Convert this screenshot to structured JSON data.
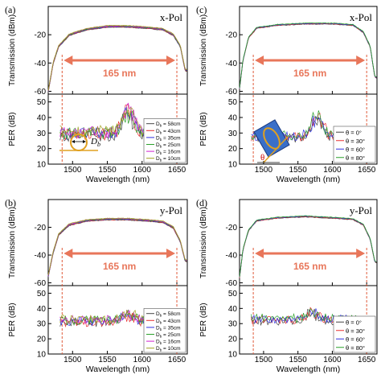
{
  "colors": {
    "arrow": "#e8765a",
    "dashed": "#e05a3a",
    "series": [
      "#444444",
      "#e83030",
      "#3030e0",
      "#2aa02a",
      "#d020d0",
      "#a0a020"
    ],
    "frame": "#000000"
  },
  "chart_data": [
    {
      "panel": "(a)",
      "pol": "x-Pol",
      "type": "line",
      "top": {
        "ylabel": "Transmission (dBm)",
        "ylim": [
          -62,
          0
        ],
        "yticks": [
          "-20",
          "-40",
          "-60"
        ],
        "yticks_val": [
          -20,
          -40,
          -60
        ]
      },
      "bottom": {
        "ylabel": "PER (dB)",
        "ylim": [
          10,
          55
        ],
        "yticks": [
          "10",
          "20",
          "30",
          "40",
          "50"
        ],
        "yticks_val": [
          10,
          20,
          30,
          40,
          50
        ]
      },
      "xlabel": "Wavelength (nm)",
      "xlim": [
        1465,
        1665
      ],
      "xticks": [
        "1500",
        "1550",
        "1600",
        "1650"
      ],
      "xticks_val": [
        1500,
        1550,
        1600,
        1650
      ],
      "bandwidth_label": "165 nm",
      "range": [
        1485,
        1650
      ],
      "legend": [
        "D",
        "= 58cm",
        "= 43cm",
        "= 35cm",
        "= 25cm",
        "= 16cm",
        "= 10cm"
      ],
      "legend_sub": "b",
      "inset": "coil",
      "inset_label": "D",
      "inset_sub": "b",
      "top_series": [
        [
          1465,
          -60
        ],
        [
          1472,
          -40
        ],
        [
          1480,
          -28
        ],
        [
          1495,
          -20
        ],
        [
          1520,
          -16
        ],
        [
          1550,
          -14
        ],
        [
          1580,
          -14
        ],
        [
          1610,
          -15
        ],
        [
          1630,
          -16
        ],
        [
          1645,
          -20
        ],
        [
          1655,
          -28
        ],
        [
          1662,
          -45
        ]
      ],
      "per_base": 30,
      "per_noise": 4,
      "per_peak_x": 1580,
      "per_peak_y": 50
    },
    {
      "panel": "(c)",
      "pol": "x-Pol",
      "type": "line",
      "top": {
        "ylabel": "Transmission (dBm)",
        "ylim": [
          -62,
          0
        ],
        "yticks": [
          "-20",
          "-40",
          "-60"
        ],
        "yticks_val": [
          -20,
          -40,
          -60
        ]
      },
      "bottom": {
        "ylabel": "PER (dB)",
        "ylim": [
          10,
          55
        ],
        "yticks": [
          "10",
          "20",
          "30",
          "40",
          "50"
        ],
        "yticks_val": [
          10,
          20,
          30,
          40,
          50
        ]
      },
      "xlabel": "Wavelength (nm)",
      "xlim": [
        1465,
        1665
      ],
      "xticks": [
        "1500",
        "1550",
        "1600",
        "1650"
      ],
      "xticks_val": [
        1500,
        1550,
        1600,
        1650
      ],
      "bandwidth_label": "165 nm",
      "range": [
        1485,
        1650
      ],
      "legend": [
        "θ = 0°",
        "θ = 30°",
        "θ = 60°",
        "θ = 80°"
      ],
      "inset": "angle",
      "inset_label": "θ",
      "top_series": [
        [
          1465,
          -58
        ],
        [
          1470,
          -38
        ],
        [
          1478,
          -22
        ],
        [
          1490,
          -15
        ],
        [
          1520,
          -13
        ],
        [
          1560,
          -12
        ],
        [
          1600,
          -12
        ],
        [
          1630,
          -13
        ],
        [
          1645,
          -18
        ],
        [
          1655,
          -28
        ],
        [
          1662,
          -50
        ]
      ],
      "per_base": 28,
      "per_noise": 3,
      "per_peak_x": 1578,
      "per_peak_y": 45
    },
    {
      "panel": "(b)",
      "pol": "y-Pol",
      "type": "line",
      "top": {
        "ylabel": "Transmission (dBm)",
        "ylim": [
          -62,
          0
        ],
        "yticks": [
          "-20",
          "-40",
          "-60"
        ],
        "yticks_val": [
          -20,
          -40,
          -60
        ]
      },
      "bottom": {
        "ylabel": "PER (dB)",
        "ylim": [
          10,
          55
        ],
        "yticks": [
          "10",
          "20",
          "30",
          "40",
          "50"
        ],
        "yticks_val": [
          10,
          20,
          30,
          40,
          50
        ]
      },
      "xlabel": "Wavelength (nm)",
      "xlim": [
        1465,
        1665
      ],
      "xticks": [
        "1500",
        "1550",
        "1600",
        "1650"
      ],
      "xticks_val": [
        1500,
        1550,
        1600,
        1650
      ],
      "bandwidth_label": "165 nm",
      "range": [
        1485,
        1650
      ],
      "legend": [
        "D",
        "= 58cm",
        "= 43cm",
        "= 35cm",
        "= 25cm",
        "= 16cm",
        "= 10cm"
      ],
      "legend_sub": "b",
      "inset": "none",
      "top_series": [
        [
          1465,
          -55
        ],
        [
          1472,
          -38
        ],
        [
          1480,
          -25
        ],
        [
          1495,
          -18
        ],
        [
          1520,
          -15
        ],
        [
          1550,
          -14
        ],
        [
          1580,
          -14
        ],
        [
          1610,
          -15
        ],
        [
          1630,
          -16
        ],
        [
          1645,
          -20
        ],
        [
          1655,
          -30
        ],
        [
          1662,
          -44
        ]
      ],
      "per_base": 32,
      "per_noise": 3,
      "per_peak_x": 1580,
      "per_peak_y": 38
    },
    {
      "panel": "(d)",
      "pol": "y-Pol",
      "type": "line",
      "top": {
        "ylabel": "Transmission (dBm)",
        "ylim": [
          -62,
          0
        ],
        "yticks": [
          "-20",
          "-40",
          "-60"
        ],
        "yticks_val": [
          -20,
          -40,
          -60
        ]
      },
      "bottom": {
        "ylabel": "PER (dB)",
        "ylim": [
          10,
          55
        ],
        "yticks": [
          "10",
          "20",
          "30",
          "40",
          "50"
        ],
        "yticks_val": [
          10,
          20,
          30,
          40,
          50
        ]
      },
      "xlabel": "Wavelength (nm)",
      "xlim": [
        1465,
        1665
      ],
      "xticks": [
        "1500",
        "1550",
        "1600",
        "1650"
      ],
      "xticks_val": [
        1500,
        1550,
        1600,
        1650
      ],
      "bandwidth_label": "165 nm",
      "range": [
        1485,
        1650
      ],
      "legend": [
        "θ = 0°",
        "θ = 30°",
        "θ = 60°",
        "θ = 80°"
      ],
      "inset": "none",
      "top_series": [
        [
          1465,
          -56
        ],
        [
          1470,
          -36
        ],
        [
          1478,
          -22
        ],
        [
          1490,
          -15
        ],
        [
          1520,
          -13
        ],
        [
          1560,
          -12
        ],
        [
          1600,
          -13
        ],
        [
          1630,
          -14
        ],
        [
          1645,
          -18
        ],
        [
          1655,
          -28
        ],
        [
          1662,
          -45
        ]
      ],
      "per_base": 33,
      "per_noise": 3,
      "per_peak_x": 1570,
      "per_peak_y": 40
    }
  ]
}
